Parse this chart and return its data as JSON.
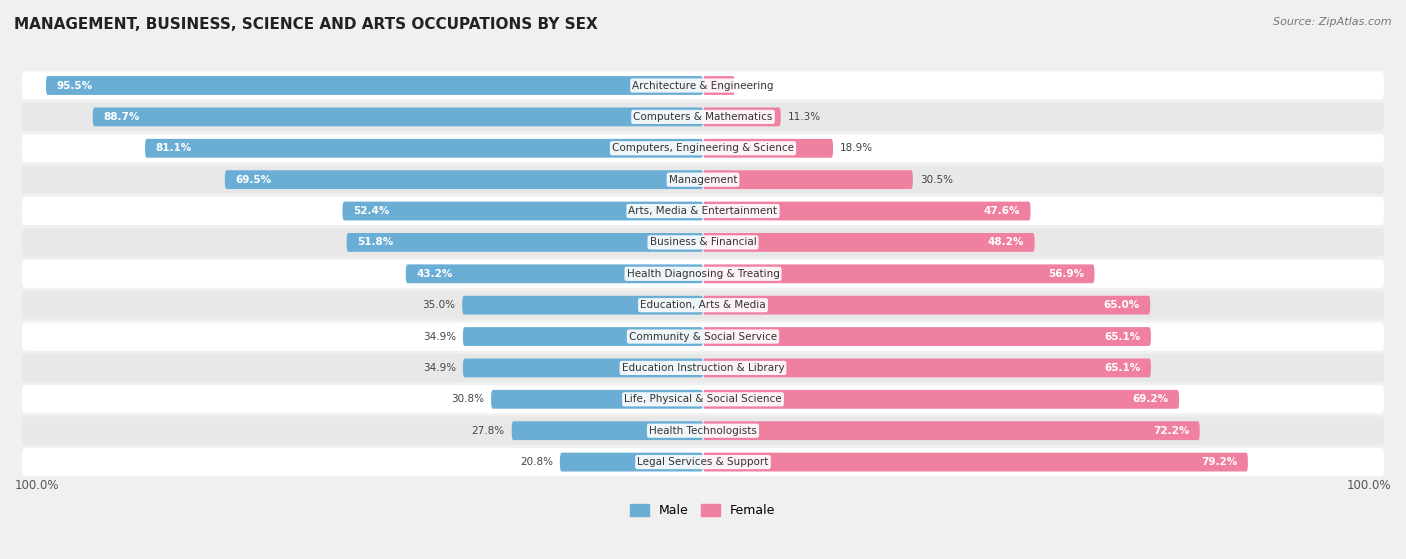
{
  "title": "MANAGEMENT, BUSINESS, SCIENCE AND ARTS OCCUPATIONS BY SEX",
  "source": "Source: ZipAtlas.com",
  "categories": [
    "Architecture & Engineering",
    "Computers & Mathematics",
    "Computers, Engineering & Science",
    "Management",
    "Arts, Media & Entertainment",
    "Business & Financial",
    "Health Diagnosing & Treating",
    "Education, Arts & Media",
    "Community & Social Service",
    "Education Instruction & Library",
    "Life, Physical & Social Science",
    "Health Technologists",
    "Legal Services & Support"
  ],
  "male_pct": [
    95.5,
    88.7,
    81.1,
    69.5,
    52.4,
    51.8,
    43.2,
    35.0,
    34.9,
    34.9,
    30.8,
    27.8,
    20.8
  ],
  "female_pct": [
    4.6,
    11.3,
    18.9,
    30.5,
    47.6,
    48.2,
    56.9,
    65.0,
    65.1,
    65.1,
    69.2,
    72.2,
    79.2
  ],
  "male_color": "#6aaed6",
  "female_color": "#f080a0",
  "bg_color": "#f0f0f0",
  "row_bg_even": "#ffffff",
  "row_bg_odd": "#e8e8e8",
  "figsize": [
    14.06,
    5.59
  ],
  "dpi": 100
}
